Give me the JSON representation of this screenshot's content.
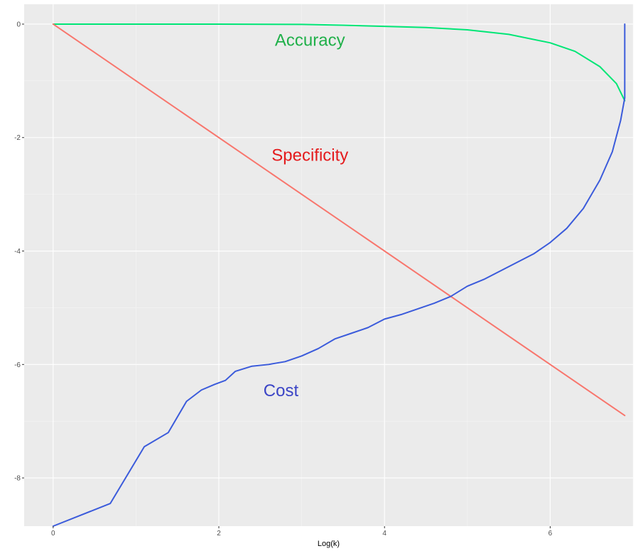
{
  "chart_data": {
    "type": "line",
    "title": "",
    "xlabel": "Log(k)",
    "ylabel": "",
    "xlim": [
      -0.35,
      7.0
    ],
    "ylim": [
      -8.85,
      0.35
    ],
    "grid": true,
    "x_ticks": [
      0,
      2,
      4,
      6
    ],
    "x_minor": [
      1,
      3,
      5,
      7
    ],
    "y_ticks": [
      0,
      -2,
      -4,
      -6,
      -8
    ],
    "y_minor": [
      -1,
      -3,
      -5,
      -7
    ],
    "colors": {
      "panel": "#ebebeb",
      "grid_major": "#ffffff",
      "grid_minor": "#f5f5f5",
      "tick_label": "#4d4d4d",
      "accuracy": "#00e676",
      "specificity": "#f8766d",
      "cost": "#3b5bdb"
    },
    "series": [
      {
        "name": "Accuracy",
        "color": "#00e676",
        "x": [
          0,
          1,
          2,
          3,
          3.5,
          4,
          4.5,
          5,
          5.5,
          6,
          6.3,
          6.6,
          6.8,
          6.9
        ],
        "y": [
          0,
          0,
          0,
          -0.005,
          -0.02,
          -0.04,
          -0.06,
          -0.1,
          -0.18,
          -0.33,
          -0.48,
          -0.75,
          -1.05,
          -1.35
        ]
      },
      {
        "name": "Specificity",
        "color": "#f8766d",
        "x": [
          0,
          6.9
        ],
        "y": [
          0,
          -6.9
        ]
      },
      {
        "name": "Cost",
        "color": "#3b5bdb",
        "x": [
          0,
          0.69,
          1.1,
          1.39,
          1.61,
          1.79,
          1.95,
          2.08,
          2.2,
          2.4,
          2.6,
          2.8,
          3.0,
          3.2,
          3.4,
          3.6,
          3.8,
          4.0,
          4.2,
          4.4,
          4.6,
          4.8,
          5.0,
          5.2,
          5.4,
          5.6,
          5.8,
          6.0,
          6.2,
          6.4,
          6.6,
          6.75,
          6.85,
          6.9,
          6.9
        ],
        "y": [
          -8.85,
          -8.45,
          -7.45,
          -7.2,
          -6.65,
          -6.45,
          -6.35,
          -6.28,
          -6.12,
          -6.03,
          -6.0,
          -5.95,
          -5.85,
          -5.72,
          -5.55,
          -5.45,
          -5.35,
          -5.2,
          -5.12,
          -5.02,
          -4.92,
          -4.8,
          -4.62,
          -4.5,
          -4.35,
          -4.2,
          -4.05,
          -3.85,
          -3.6,
          -3.25,
          -2.75,
          -2.25,
          -1.7,
          -1.3,
          0
        ]
      }
    ],
    "annotations": [
      {
        "text": "Accuracy",
        "x": 3.1,
        "y": -0.3,
        "color": "#1fb049"
      },
      {
        "text": "Specificity",
        "x": 3.1,
        "y": -2.33,
        "color": "#e41a1c"
      },
      {
        "text": "Cost",
        "x": 2.75,
        "y": -6.48,
        "color": "#3b45c6"
      }
    ]
  }
}
